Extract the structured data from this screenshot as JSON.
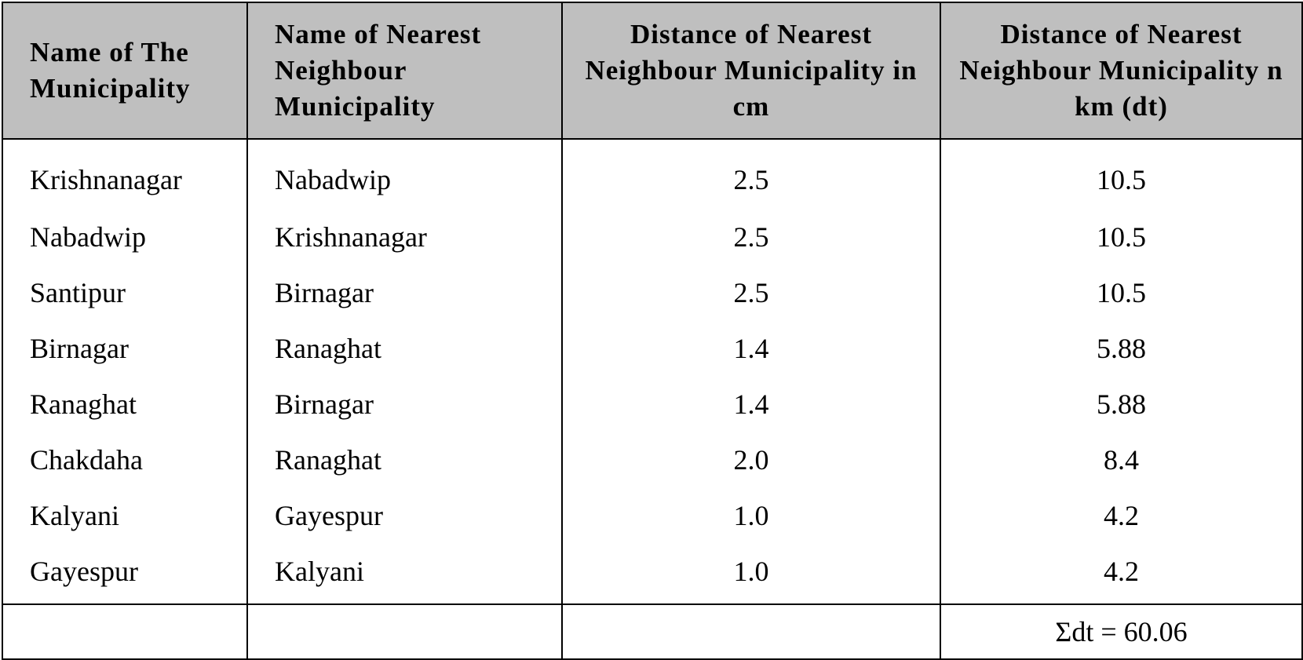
{
  "table": {
    "headers": [
      "Name of The Municipality",
      "Name of Nearest Neighbour Municipality",
      "Distance of Nearest Neighbour Municipality in cm",
      "Distance of Nearest Neighbour Municipality n km (dt)"
    ],
    "rows": [
      [
        "Krishnanagar",
        "Nabadwip",
        "2.5",
        "10.5"
      ],
      [
        "Nabadwip",
        "Krishnanagar",
        "2.5",
        "10.5"
      ],
      [
        "Santipur",
        "Birnagar",
        "2.5",
        "10.5"
      ],
      [
        "Birnagar",
        "Ranaghat",
        "1.4",
        "5.88"
      ],
      [
        "Ranaghat",
        "Birnagar",
        "1.4",
        "5.88"
      ],
      [
        "Chakdaha",
        "Ranaghat",
        "2.0",
        "8.4"
      ],
      [
        "Kalyani",
        "Gayespur",
        "1.0",
        "4.2"
      ],
      [
        "Gayespur",
        "Kalyani",
        "1.0",
        "4.2"
      ]
    ],
    "total": "Σdt = 60.06"
  }
}
